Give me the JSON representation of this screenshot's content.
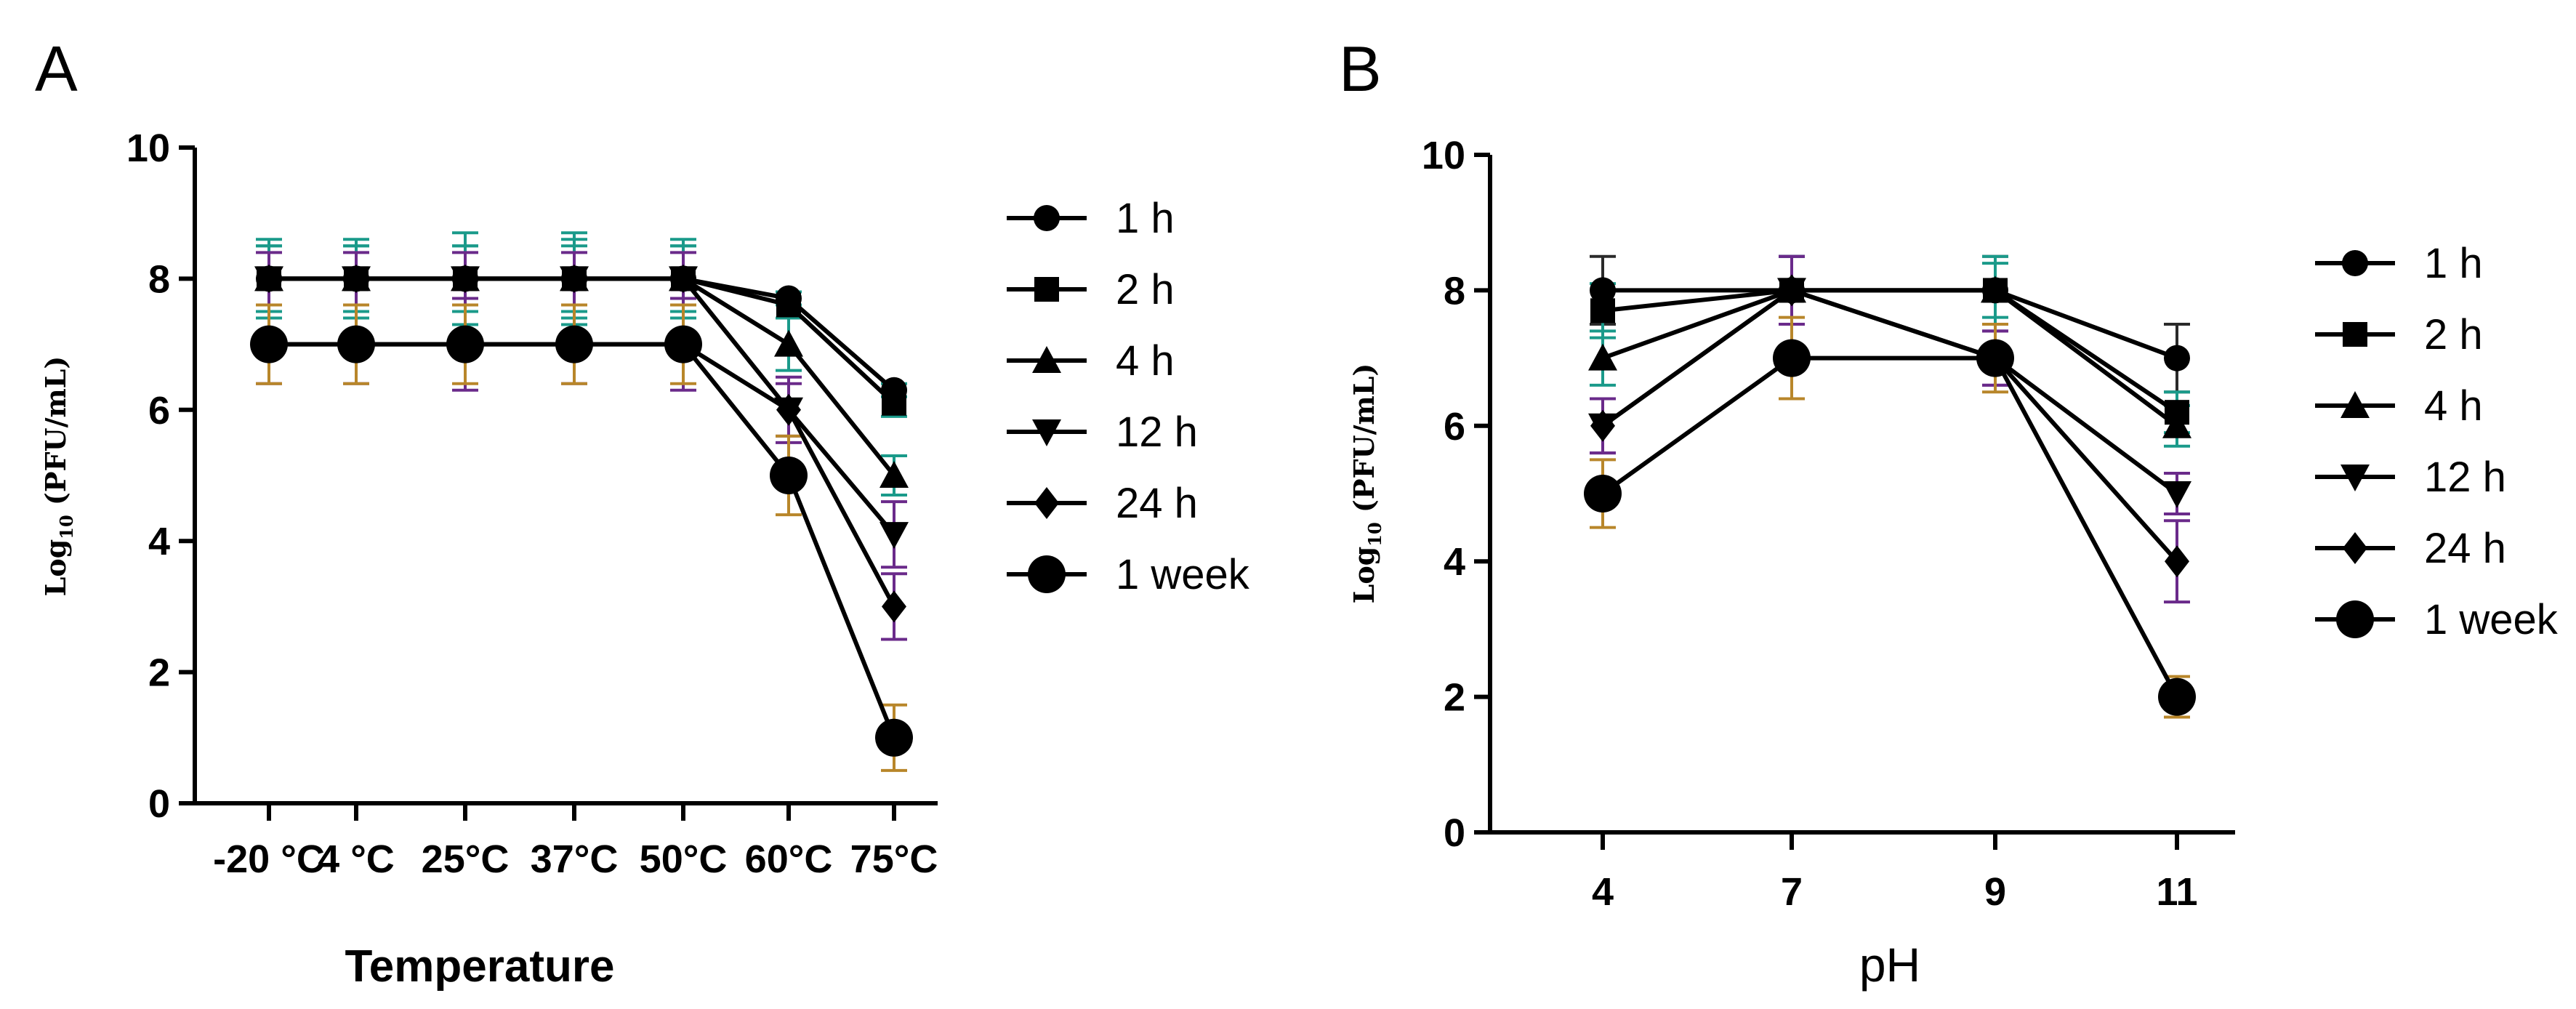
{
  "chart_data": [
    {
      "type": "line",
      "panel_label": "A",
      "xlabel": "Temperature",
      "ylabel_base": "Log",
      "ylabel_sub": "10",
      "ylabel_rest": " (PFU/mL)",
      "ylim": [
        0,
        10
      ],
      "yticks": [
        0,
        2,
        4,
        6,
        8,
        10
      ],
      "categories": [
        "-20 °C",
        "4 °C",
        "25°C",
        "37°C",
        "50°C",
        "60°C",
        "75°C"
      ],
      "legend_position": "right",
      "series": [
        {
          "name": "1 h",
          "marker": "circle",
          "values": [
            8,
            8,
            8,
            8,
            8,
            7.7,
            6.3
          ],
          "errors": [
            0.6,
            0.6,
            0.7,
            0.7,
            0.6,
            0.1,
            0.1
          ],
          "error_color": "#1a9a8a"
        },
        {
          "name": "2 h",
          "marker": "square",
          "values": [
            8,
            8,
            8,
            8,
            8,
            7.6,
            6.1
          ],
          "errors": [
            0.5,
            0.5,
            0.5,
            0.6,
            0.5,
            0.2,
            0.2
          ],
          "error_color": "#1a9a8a"
        },
        {
          "name": "4 h",
          "marker": "triangle-up",
          "values": [
            8,
            8,
            8,
            8,
            8,
            7.0,
            5.0
          ],
          "errors": [
            0.5,
            0.5,
            0.5,
            0.5,
            0.5,
            0.4,
            0.3
          ],
          "error_color": "#1a9a8a"
        },
        {
          "name": "12 h",
          "marker": "triangle-down",
          "values": [
            8,
            8,
            8,
            8,
            8,
            6.0,
            4.1
          ],
          "errors": [
            0.4,
            0.4,
            0.4,
            0.4,
            0.4,
            0.4,
            0.5
          ],
          "error_color": "#6a2a8a"
        },
        {
          "name": "24 h",
          "marker": "diamond",
          "values": [
            7,
            7,
            7,
            7,
            7,
            6.0,
            3.0
          ],
          "errors": [
            0.6,
            0.6,
            0.7,
            0.6,
            0.7,
            0.5,
            0.5
          ],
          "error_color": "#6a2a8a"
        },
        {
          "name": "1 week",
          "marker": "big-circle",
          "values": [
            7,
            7,
            7,
            7,
            7,
            5.0,
            1.0
          ],
          "errors": [
            0.6,
            0.6,
            0.6,
            0.6,
            0.6,
            0.6,
            0.5
          ],
          "error_color": "#b8862a"
        }
      ]
    },
    {
      "type": "line",
      "panel_label": "B",
      "xlabel": "pH",
      "ylabel_base": "Log",
      "ylabel_sub": "10",
      "ylabel_rest": " (PFU/mL)",
      "ylim": [
        0,
        10
      ],
      "yticks": [
        0,
        2,
        4,
        6,
        8,
        10
      ],
      "categories": [
        "4",
        "7",
        "9",
        "11"
      ],
      "legend_position": "right",
      "series": [
        {
          "name": "1 h",
          "marker": "circle",
          "values": [
            8.0,
            8.0,
            8.0,
            7.0
          ],
          "errors": [
            0.5,
            0.5,
            0.5,
            0.5
          ],
          "error_color": "#2a2a2a"
        },
        {
          "name": "2 h",
          "marker": "square",
          "values": [
            7.7,
            8.0,
            8.0,
            6.2
          ],
          "errors": [
            0.4,
            0.5,
            0.5,
            0.3
          ],
          "error_color": "#1a9a8a"
        },
        {
          "name": "4 h",
          "marker": "triangle-up",
          "values": [
            7.0,
            8.0,
            8.0,
            6.0
          ],
          "errors": [
            0.4,
            0.5,
            0.4,
            0.3
          ],
          "error_color": "#1a9a8a"
        },
        {
          "name": "12 h",
          "marker": "triangle-down",
          "values": [
            6.0,
            8.0,
            7.0,
            5.0
          ],
          "errors": [
            0.4,
            0.5,
            0.4,
            0.3
          ],
          "error_color": "#6a2a8a"
        },
        {
          "name": "24 h",
          "marker": "diamond",
          "values": [
            6.0,
            8.0,
            7.0,
            4.0
          ],
          "errors": [
            0.4,
            0.5,
            0.4,
            0.6
          ],
          "error_color": "#6a2a8a"
        },
        {
          "name": "1 week",
          "marker": "big-circle",
          "values": [
            5.0,
            7.0,
            7.0,
            2.0
          ],
          "errors": [
            0.5,
            0.6,
            0.5,
            0.3
          ],
          "error_color": "#b8862a"
        }
      ]
    }
  ]
}
